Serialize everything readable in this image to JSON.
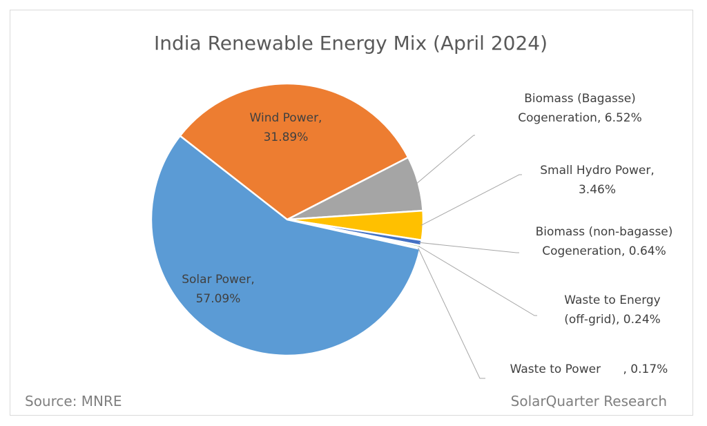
{
  "chart_data": {
    "type": "pie",
    "title": "India Renewable Energy Mix (April 2024)",
    "slices": [
      {
        "label_lines": [
          "Wind Power,",
          "31.89%"
        ],
        "value": 31.89,
        "color": "#ED7D31"
      },
      {
        "label_lines": [
          "Biomass (Bagasse)",
          "Cogeneration, 6.52%"
        ],
        "value": 6.52,
        "color": "#A5A5A5"
      },
      {
        "label_lines": [
          "Small Hydro Power,",
          "3.46%"
        ],
        "value": 3.46,
        "color": "#FFC000"
      },
      {
        "label_lines": [
          "Biomass (non-bagasse)",
          "Cogeneration, 0.64%"
        ],
        "value": 0.64,
        "color": "#4472C4"
      },
      {
        "label_lines": [
          "Waste to Energy",
          "(off-grid), 0.24%"
        ],
        "value": 0.24,
        "color": "#70AD47"
      },
      {
        "label_lines": [
          "Waste to Power      , 0.17%"
        ],
        "value": 0.17,
        "color": "#255E91"
      },
      {
        "label_lines": [
          "Solar Power,",
          "57.09%"
        ],
        "value": 57.09,
        "color": "#5B9BD5"
      }
    ]
  },
  "footer": {
    "source": "Source: MNRE",
    "credit": "SolarQuarter Research"
  }
}
